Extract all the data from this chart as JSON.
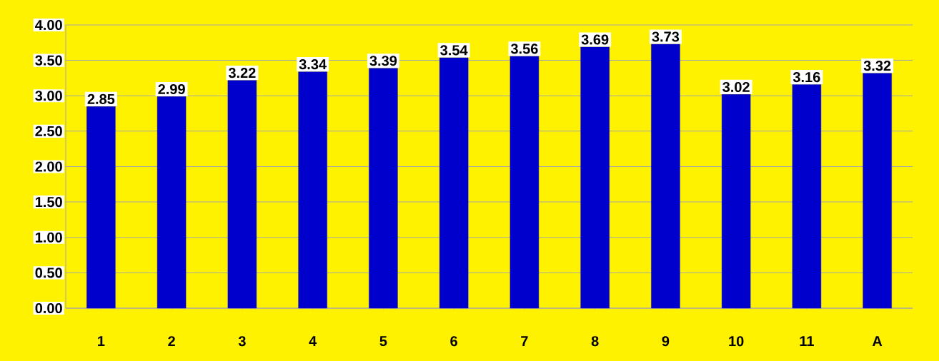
{
  "chart_data": {
    "type": "bar",
    "categories": [
      "1",
      "2",
      "3",
      "4",
      "5",
      "6",
      "7",
      "8",
      "9",
      "10",
      "11",
      "A"
    ],
    "values": [
      2.85,
      2.99,
      3.22,
      3.34,
      3.39,
      3.54,
      3.56,
      3.69,
      3.73,
      3.02,
      3.16,
      3.32
    ],
    "color": "#0000cc",
    "ylim": [
      0,
      4
    ],
    "yticks": [
      {
        "value": 0,
        "label": "0.00"
      },
      {
        "value": 0.5,
        "label": "0.50"
      },
      {
        "value": 1,
        "label": "1.00"
      },
      {
        "value": 1.5,
        "label": "1.50"
      },
      {
        "value": 2,
        "label": "2.00"
      },
      {
        "value": 2.5,
        "label": "2.50"
      },
      {
        "value": 3,
        "label": "3.00"
      },
      {
        "value": 3.5,
        "label": "3.50"
      },
      {
        "value": 4,
        "label": "4.00"
      }
    ],
    "grid": "y",
    "data_labels": true
  }
}
